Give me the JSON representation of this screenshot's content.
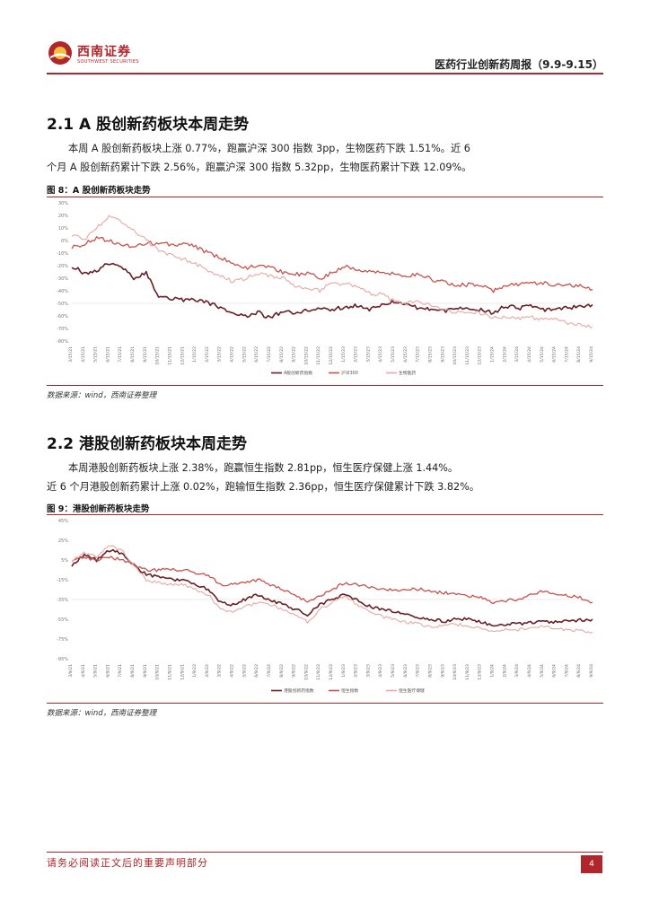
{
  "header": {
    "logo_cn": "西南证券",
    "logo_en": "SOUTHWEST SECURITIES",
    "report_title": "医药行业创新药周报（9.9-9.15）"
  },
  "section1": {
    "title": "2.1 A 股创新药板块本周走势",
    "paragraph_line1": "本周 A 股创新药板块上涨 0.77%，跑赢沪深 300 指数 3pp，生物医药下跌 1.51%。近 6",
    "paragraph_line2": "个月 A 股创新药累计下跌 2.56%，跑赢沪深 300 指数 5.32pp，生物医药累计下跌 12.09%。",
    "figure_caption": "图 8：A 股创新药板块走势",
    "source": "数据来源：wind，西南证券整理"
  },
  "section2": {
    "title": "2.2 港股创新药板块本周走势",
    "paragraph_line1": "本周港股创新药板块上涨 2.38%，跑赢恒生指数 2.81pp，恒生医疗保健上涨 1.44%。",
    "paragraph_line2": "近 6 个月港股创新药累计上涨 0.02%，跑输恒生指数 2.36pp，恒生医疗保健累计下跌 3.82%。",
    "figure_caption": "图 9：港股创新药板块走势",
    "source": "数据来源：wind，西南证券整理"
  },
  "footer": {
    "disclaimer": "请务必阅读正文后的重要声明部分",
    "page_number": "4"
  },
  "colors": {
    "brand_red": "#b0262a",
    "series_dark": "#6b1e24",
    "series_mid": "#c8504d",
    "series_light": "#e6a8a4"
  },
  "chart_data": [
    {
      "type": "line",
      "ylim": [
        -80,
        30
      ],
      "yticks": [
        "30%",
        "20%",
        "10%",
        "0%",
        "-10%",
        "-20%",
        "-30%",
        "-40%",
        "-50%",
        "-60%",
        "-70%",
        "-80%"
      ],
      "ytick_values": [
        30,
        20,
        10,
        0,
        -10,
        -20,
        -30,
        -40,
        -50,
        -60,
        -70,
        -80
      ],
      "reference_line": -50,
      "x": [
        "3/15/21",
        "4/15/21",
        "5/15/21",
        "6/15/21",
        "7/15/21",
        "8/15/21",
        "9/15/21",
        "10/15/21",
        "11/15/21",
        "12/15/21",
        "1/15/22",
        "2/15/22",
        "3/15/22",
        "4/15/22",
        "5/15/22",
        "6/15/22",
        "7/15/22",
        "8/15/22",
        "9/15/22",
        "10/15/22",
        "11/15/22",
        "12/15/22",
        "1/15/23",
        "2/15/23",
        "3/15/23",
        "4/15/23",
        "5/15/23",
        "6/15/23",
        "7/15/23",
        "8/15/23",
        "9/15/23",
        "10/15/23",
        "11/15/23",
        "12/15/23",
        "1/15/24",
        "2/15/24",
        "3/15/24",
        "4/15/24",
        "5/15/24",
        "6/15/24",
        "7/15/24",
        "8/15/24",
        "9/15/24"
      ],
      "legend_position": "bottom",
      "series": [
        {
          "name": "A股创新药指数",
          "values": [
            -20,
            -26,
            -24,
            -18,
            -20,
            -30,
            -26,
            -44,
            -46,
            -47,
            -47,
            -50,
            -53,
            -58,
            -60,
            -57,
            -62,
            -56,
            -58,
            -55,
            -54,
            -55,
            -53,
            -52,
            -55,
            -51,
            -48,
            -50,
            -54,
            -55,
            -56,
            -54,
            -55,
            -55,
            -58,
            -52,
            -54,
            -52,
            -55,
            -55,
            -53,
            -53,
            -51
          ]
        },
        {
          "name": "沪深300",
          "values": [
            -5,
            -3,
            2,
            0,
            -3,
            -5,
            -2,
            -2,
            -3,
            -3,
            -5,
            -10,
            -14,
            -18,
            -22,
            -20,
            -22,
            -25,
            -27,
            -26,
            -30,
            -26,
            -20,
            -23,
            -24,
            -26,
            -26,
            -28,
            -27,
            -31,
            -33,
            -36,
            -35,
            -36,
            -40,
            -35,
            -35,
            -34,
            -34,
            -35,
            -36,
            -36,
            -39
          ]
        },
        {
          "name": "生物医药",
          "values": [
            5,
            0,
            10,
            20,
            15,
            8,
            0,
            -8,
            -12,
            -15,
            -18,
            -25,
            -28,
            -33,
            -30,
            -26,
            -28,
            -30,
            -36,
            -38,
            -40,
            -34,
            -35,
            -36,
            -42,
            -43,
            -48,
            -50,
            -48,
            -52,
            -55,
            -57,
            -56,
            -58,
            -62,
            -60,
            -62,
            -61,
            -63,
            -63,
            -66,
            -67,
            -69
          ]
        }
      ]
    },
    {
      "type": "line",
      "ylim": [
        -95,
        45
      ],
      "yticks": [
        "45%",
        "25%",
        "5%",
        "-15%",
        "-35%",
        "-55%",
        "-75%",
        "-95%"
      ],
      "ytick_values": [
        45,
        25,
        5,
        -15,
        -35,
        -55,
        -75,
        -95
      ],
      "reference_line": -35,
      "x": [
        "3/9/21",
        "4/9/21",
        "5/9/21",
        "6/9/21",
        "7/9/21",
        "8/9/21",
        "9/9/21",
        "10/9/21",
        "11/9/21",
        "12/9/21",
        "1/9/22",
        "2/9/22",
        "3/9/22",
        "4/9/22",
        "5/9/22",
        "6/9/22",
        "7/9/22",
        "8/9/22",
        "9/9/22",
        "10/9/22",
        "11/9/22",
        "12/9/22",
        "1/9/23",
        "2/9/23",
        "3/9/23",
        "4/9/23",
        "5/9/23",
        "6/9/23",
        "7/9/23",
        "8/9/23",
        "9/9/23",
        "10/9/23",
        "11/9/23",
        "12/9/23",
        "1/9/24",
        "2/9/24",
        "3/9/24",
        "4/9/24",
        "5/9/24",
        "6/9/24",
        "7/9/24",
        "8/9/24",
        "9/9/24"
      ],
      "legend_position": "bottom",
      "series": [
        {
          "name": "港股创新药指数",
          "values": [
            0,
            10,
            5,
            15,
            12,
            0,
            -10,
            -12,
            -15,
            -15,
            -20,
            -25,
            -38,
            -40,
            -35,
            -30,
            -35,
            -40,
            -45,
            -50,
            -40,
            -35,
            -30,
            -35,
            -42,
            -45,
            -47,
            -50,
            -53,
            -55,
            -57,
            -55,
            -55,
            -58,
            -62,
            -60,
            -60,
            -58,
            -57,
            -58,
            -57,
            -56,
            -55
          ]
        },
        {
          "name": "恒生指数",
          "values": [
            5,
            8,
            5,
            8,
            5,
            0,
            -5,
            -5,
            -5,
            -5,
            -8,
            -10,
            -20,
            -20,
            -18,
            -15,
            -20,
            -25,
            -30,
            -38,
            -32,
            -25,
            -18,
            -20,
            -23,
            -25,
            -25,
            -25,
            -24,
            -27,
            -28,
            -30,
            -31,
            -33,
            -38,
            -36,
            -35,
            -30,
            -26,
            -30,
            -31,
            -33,
            -38
          ]
        },
        {
          "name": "恒生医疗保健",
          "values": [
            5,
            12,
            8,
            20,
            15,
            0,
            -15,
            -18,
            -20,
            -20,
            -25,
            -30,
            -45,
            -48,
            -42,
            -38,
            -40,
            -45,
            -50,
            -58,
            -45,
            -38,
            -32,
            -40,
            -48,
            -52,
            -55,
            -58,
            -60,
            -62,
            -62,
            -60,
            -62,
            -64,
            -68,
            -66,
            -66,
            -64,
            -62,
            -64,
            -66,
            -67,
            -68
          ]
        }
      ]
    }
  ]
}
